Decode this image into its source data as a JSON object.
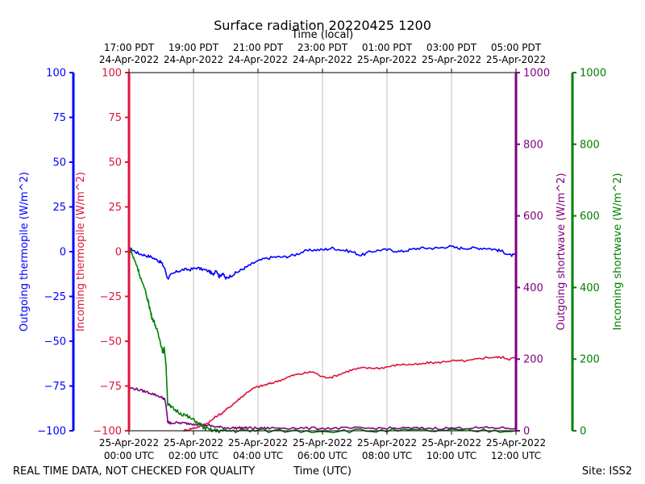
{
  "chart_data": {
    "type": "line",
    "title": "Surface radiation 20220425 1200",
    "top_xlabel": "Time (local)",
    "xlabel": "Time (UTC)",
    "footer_left": "REAL TIME DATA, NOT CHECKED FOR QUALITY",
    "footer_right": "Site: ISS2",
    "xlim_hours": [
      0,
      12
    ],
    "x_ticks_utc": [
      {
        "hour": 0,
        "line1": "25-Apr-2022",
        "line2": "00:00 UTC"
      },
      {
        "hour": 2,
        "line1": "25-Apr-2022",
        "line2": "02:00 UTC"
      },
      {
        "hour": 4,
        "line1": "25-Apr-2022",
        "line2": "04:00 UTC"
      },
      {
        "hour": 6,
        "line1": "25-Apr-2022",
        "line2": "06:00 UTC"
      },
      {
        "hour": 8,
        "line1": "25-Apr-2022",
        "line2": "08:00 UTC"
      },
      {
        "hour": 10,
        "line1": "25-Apr-2022",
        "line2": "10:00 UTC"
      },
      {
        "hour": 12,
        "line1": "25-Apr-2022",
        "line2": "12:00 UTC"
      }
    ],
    "x_ticks_local": [
      {
        "hour": 0,
        "line1": "17:00 PDT",
        "line2": "24-Apr-2022"
      },
      {
        "hour": 2,
        "line1": "19:00 PDT",
        "line2": "24-Apr-2022"
      },
      {
        "hour": 4,
        "line1": "21:00 PDT",
        "line2": "24-Apr-2022"
      },
      {
        "hour": 6,
        "line1": "23:00 PDT",
        "line2": "24-Apr-2022"
      },
      {
        "hour": 8,
        "line1": "01:00 PDT",
        "line2": "25-Apr-2022"
      },
      {
        "hour": 10,
        "line1": "03:00 PDT",
        "line2": "25-Apr-2022"
      },
      {
        "hour": 12,
        "line1": "05:00 PDT",
        "line2": "25-Apr-2022"
      }
    ],
    "axes": {
      "outgoing_thermopile": {
        "label": "Outgoing thermopile (W/m^2)",
        "color": "#0000ff",
        "ylim": [
          -100,
          100
        ],
        "ticks": [
          -100,
          -75,
          -50,
          -25,
          0,
          25,
          50,
          75,
          100
        ]
      },
      "incoming_thermopile": {
        "label": "Incoming thermopile (W/m^2)",
        "color": "#dc143c",
        "ylim": [
          -100,
          100
        ],
        "ticks": [
          -100,
          -75,
          -50,
          -25,
          0,
          25,
          50,
          75,
          100
        ]
      },
      "outgoing_shortwave": {
        "label": "Outgoing shortwave (W/m^2)",
        "color": "#800080",
        "ylim": [
          0,
          1000
        ],
        "ticks": [
          0,
          200,
          400,
          600,
          800,
          1000
        ]
      },
      "incoming_shortwave": {
        "label": "Incoming shortwave (W/m^2)",
        "color": "#008000",
        "ylim": [
          0,
          1000
        ],
        "ticks": [
          0,
          200,
          400,
          600,
          800,
          1000
        ]
      }
    },
    "series": [
      {
        "name": "Outgoing thermopile",
        "axis": "outgoing_thermopile",
        "color": "#0000ff",
        "x": [
          0,
          0.1,
          0.3,
          0.5,
          0.7,
          0.9,
          1.0,
          1.1,
          1.2,
          1.3,
          1.5,
          1.7,
          1.9,
          2.1,
          2.3,
          2.5,
          2.6,
          2.7,
          2.8,
          2.9,
          3.0,
          3.1,
          3.3,
          3.5,
          3.7,
          3.9,
          4.2,
          4.5,
          4.8,
          5.1,
          5.4,
          5.7,
          6.0,
          6.3,
          6.6,
          6.9,
          7.2,
          7.5,
          7.8,
          8.1,
          8.4,
          8.7,
          9.0,
          9.3,
          9.6,
          9.9,
          10.2,
          10.5,
          10.8,
          11.1,
          11.4,
          11.6,
          11.8,
          12.0
        ],
        "values": [
          2,
          1,
          -1,
          -2,
          -3,
          -5,
          -6,
          -9,
          -15,
          -13,
          -11,
          -10,
          -10,
          -9,
          -10,
          -11,
          -13,
          -10,
          -14,
          -12,
          -15,
          -14,
          -12,
          -10,
          -8,
          -6,
          -4,
          -3,
          -3,
          -2,
          0,
          1,
          1,
          2,
          1,
          0,
          -2,
          0,
          1,
          1,
          0,
          1,
          2,
          2,
          2,
          3,
          2,
          2,
          2,
          2,
          1,
          0,
          -2,
          -2
        ],
        "noise": 0.8
      },
      {
        "name": "Incoming thermopile",
        "axis": "incoming_thermopile",
        "color": "#dc143c",
        "x": [
          1.7,
          1.9,
          2.1,
          2.3,
          2.5,
          2.7,
          2.9,
          3.1,
          3.3,
          3.5,
          3.7,
          3.9,
          4.1,
          4.3,
          4.5,
          4.8,
          5.1,
          5.4,
          5.7,
          6.0,
          6.3,
          6.6,
          6.9,
          7.2,
          7.5,
          7.8,
          8.1,
          8.4,
          8.7,
          9.0,
          9.3,
          9.6,
          9.9,
          10.2,
          10.5,
          10.8,
          11.1,
          11.4,
          11.6,
          11.8,
          12.0
        ],
        "values": [
          -100,
          -99,
          -98,
          -97,
          -95,
          -92,
          -90,
          -87,
          -84,
          -81,
          -78,
          -76,
          -75,
          -74,
          -73,
          -71,
          -69,
          -68,
          -67,
          -70,
          -70,
          -68,
          -66,
          -65,
          -65,
          -65,
          -64,
          -63,
          -63,
          -63,
          -62,
          -62,
          -61,
          -61,
          -61,
          -60,
          -59,
          -59,
          -59,
          -60,
          -59
        ],
        "noise": 0.6
      },
      {
        "name": "Outgoing shortwave",
        "axis": "outgoing_shortwave",
        "color": "#800080",
        "x": [
          0,
          0.2,
          0.4,
          0.6,
          0.8,
          1.0,
          1.1,
          1.15,
          1.2,
          1.25,
          1.3,
          1.5,
          1.7,
          1.9,
          2.1,
          2.3,
          2.5,
          2.7,
          2.9,
          3.1,
          3.3,
          3.5,
          3.7,
          3.9,
          4.2,
          4.5,
          5.0,
          5.5,
          6.0,
          6.5,
          7.0,
          7.5,
          8.0,
          8.5,
          9.0,
          9.5,
          10.0,
          10.5,
          11.0,
          11.5,
          12.0
        ],
        "values": [
          120,
          117,
          112,
          107,
          101,
          94,
          89,
          70,
          25,
          22,
          22,
          22,
          21,
          20,
          19,
          17,
          14,
          11,
          9,
          8,
          8,
          8,
          8,
          7,
          7,
          8,
          8,
          7,
          7,
          7,
          7,
          7,
          7,
          7,
          7,
          7,
          7,
          8,
          8,
          8,
          7
        ],
        "noise": 0.7
      },
      {
        "name": "Incoming shortwave",
        "axis": "incoming_shortwave",
        "color": "#008000",
        "x": [
          0,
          0.05,
          0.15,
          0.25,
          0.35,
          0.5,
          0.6,
          0.65,
          0.7,
          0.8,
          0.9,
          1.0,
          1.05,
          1.1,
          1.15,
          1.2,
          1.3,
          1.5,
          1.7,
          1.9,
          2.1,
          2.3,
          2.5,
          2.7,
          2.9,
          3.1,
          3.5,
          4.0,
          5.0,
          6.0,
          7.0,
          8.0,
          9.0,
          10.0,
          11.0,
          12.0
        ],
        "values": [
          500,
          505,
          480,
          460,
          430,
          390,
          360,
          340,
          320,
          300,
          270,
          240,
          220,
          230,
          180,
          75,
          65,
          55,
          45,
          35,
          25,
          10,
          2,
          0,
          0,
          0,
          0,
          0,
          0,
          0,
          0,
          0,
          0,
          0,
          0,
          0
        ],
        "noise": 1.2
      }
    ]
  }
}
